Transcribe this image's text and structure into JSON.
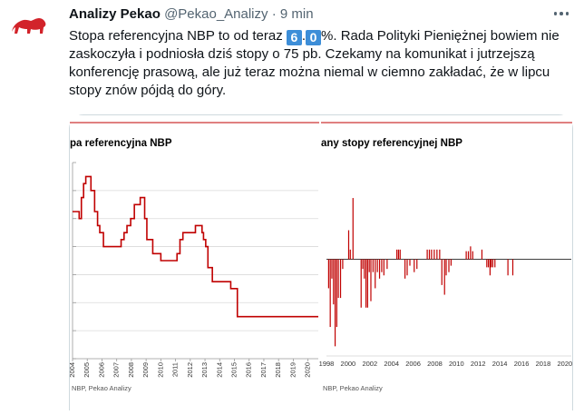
{
  "tweet": {
    "author_name": "Analizy Pekao",
    "handle": "@Pekao_Analizy",
    "separator": "·",
    "time": "9 min",
    "avatar_icon": "bison-logo-icon",
    "avatar_color": "#d2232a",
    "more_icon": "more-options-icon",
    "text_before": "Stopa referencyjna NBP to od teraz ",
    "keycap_1": "6",
    "keycap_sep": ".",
    "keycap_2": "0",
    "text_after": "%. Rada Polityki Pieniężnej bowiem nie zaskoczyła i podniosła dziś stopy o 75 pb. Czekamy na komunikat i jutrzejszą konferencję prasową, ale już teraz można niemal w ciemno zakładać, że w lipcu stopy znów pójdą do góry.",
    "keycap_color": "#3d8ed8"
  },
  "chart_data": [
    {
      "type": "line",
      "title": "pa referencyjna NBP",
      "source": "NBP, Pekao Analizy",
      "line_color": "#c00000",
      "header_rule_color": "#c00000",
      "xlim": [
        2004,
        2020.7
      ],
      "ylim": [
        0,
        7
      ],
      "x_ticks": [
        "2004",
        "2005",
        "2006",
        "2007",
        "2008",
        "2009",
        "2010",
        "2011",
        "2012",
        "2013",
        "2014",
        "2015",
        "2016",
        "2017",
        "2018",
        "2019",
        "2020"
      ],
      "grid": "horizontal",
      "series": [
        {
          "x": [
            2004,
            2004.45,
            2004.6,
            2004.75,
            2004.9,
            2005.25,
            2005.5,
            2005.7,
            2005.85,
            2006.1,
            2007.3,
            2007.5,
            2007.7,
            2007.95,
            2008.2,
            2008.6,
            2008.9,
            2009.05,
            2009.45,
            2010,
            2011.1,
            2011.3,
            2011.5,
            2012.35,
            2012.8,
            2012.9,
            2013.05,
            2013.2,
            2013.5,
            2014.75,
            2015.2,
            2020.7
          ],
          "y": [
            5.25,
            5.0,
            5.75,
            6.25,
            6.5,
            6.0,
            5.25,
            4.75,
            4.5,
            4.0,
            4.25,
            4.5,
            4.75,
            5.0,
            5.5,
            5.75,
            5.0,
            4.25,
            3.75,
            3.5,
            3.75,
            4.25,
            4.5,
            4.75,
            4.5,
            4.25,
            4.0,
            3.25,
            2.75,
            2.5,
            1.5,
            1.5
          ]
        }
      ]
    },
    {
      "type": "bar",
      "title": "any stopy referencyjnej NBP",
      "source": "NBP, Pekao Analizy",
      "bar_color": "#c00000",
      "header_rule_color": "#c00000",
      "xlim": [
        1998,
        2020.6
      ],
      "ylim": [
        -3,
        3
      ],
      "x_ticks": [
        "1998",
        "2000",
        "2002",
        "2004",
        "2006",
        "2008",
        "2010",
        "2012",
        "2014",
        "2016",
        "2018",
        "2020"
      ],
      "series": [
        {
          "name": "",
          "x": [
            1998.2,
            1998.35,
            1998.5,
            1998.65,
            1998.8,
            1998.95,
            1999.1,
            1999.3,
            1999.5,
            2000.05,
            2000.2,
            2000.45,
            2001.2,
            2001.35,
            2001.5,
            2001.65,
            2001.8,
            2001.95,
            2002.1,
            2002.3,
            2002.5,
            2002.7,
            2002.9,
            2003.1,
            2003.3,
            2003.6,
            2004.5,
            2004.65,
            2004.8,
            2005.25,
            2005.45,
            2005.7,
            2006.1,
            2006.35,
            2007.3,
            2007.5,
            2007.7,
            2007.95,
            2008.2,
            2008.45,
            2008.65,
            2008.9,
            2009.05,
            2009.3,
            2009.5,
            2010.9,
            2011.1,
            2011.3,
            2011.5,
            2012.35,
            2012.8,
            2012.95,
            2013.1,
            2013.2,
            2013.35,
            2013.55,
            2014.75,
            2015.2
          ],
          "values": [
            -0.9,
            -2.1,
            -0.6,
            -1.4,
            -2.7,
            -2.1,
            -1.2,
            -1.2,
            -0.3,
            0.9,
            0.3,
            1.9,
            -1.5,
            -0.3,
            -0.6,
            -1.5,
            -1.5,
            -0.4,
            -1.3,
            -0.4,
            -0.9,
            -0.4,
            -0.6,
            -0.4,
            -0.5,
            -0.3,
            0.3,
            0.3,
            0.3,
            -0.6,
            -0.5,
            -0.2,
            -0.4,
            -0.3,
            0.3,
            0.3,
            0.3,
            0.3,
            0.3,
            0.3,
            -0.8,
            -1.1,
            -0.5,
            -0.4,
            -0.2,
            0.25,
            0.25,
            0.4,
            0.25,
            0.3,
            -0.25,
            -0.25,
            -0.5,
            -0.25,
            -0.25,
            -0.25,
            -0.5,
            -0.5
          ]
        }
      ]
    }
  ]
}
